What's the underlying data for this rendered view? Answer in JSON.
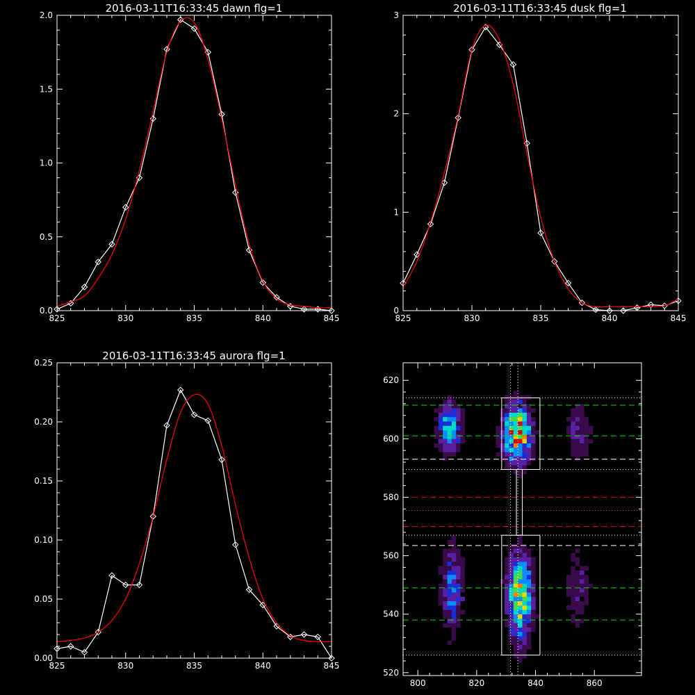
{
  "chart_data": [
    {
      "type": "line",
      "title": "2016-03-11T16:33:45 dawn flg=1",
      "xlim": [
        825,
        845
      ],
      "ylim": [
        0.0,
        2.0
      ],
      "xticks": [
        "825",
        "830",
        "835",
        "840",
        "845"
      ],
      "yticks": [
        "0.0",
        "0.5",
        "1.0",
        "1.5",
        "2.0"
      ],
      "series": [
        {
          "color": "#ffffff",
          "markers": "diamond",
          "x": [
            825,
            826,
            827,
            828,
            829,
            830,
            831,
            832,
            833,
            834,
            835,
            836,
            837,
            838,
            839,
            840,
            841,
            842,
            843,
            844,
            845
          ],
          "y": [
            0.01,
            0.05,
            0.16,
            0.33,
            0.45,
            0.7,
            0.9,
            1.3,
            1.77,
            1.97,
            1.91,
            1.75,
            1.33,
            0.8,
            0.41,
            0.19,
            0.09,
            0.03,
            0.01,
            0.01,
            0.0
          ]
        },
        {
          "color": "#ff0000",
          "x": [
            825,
            826,
            827,
            828,
            829,
            830,
            831,
            832,
            833,
            834,
            835,
            836,
            837,
            838,
            839,
            840,
            841,
            842,
            843,
            844,
            845
          ],
          "y": [
            0.03,
            0.06,
            0.1,
            0.22,
            0.38,
            0.62,
            0.95,
            1.35,
            1.75,
            1.96,
            1.95,
            1.7,
            1.3,
            0.85,
            0.45,
            0.2,
            0.08,
            0.04,
            0.03,
            0.02,
            0.02
          ]
        }
      ]
    },
    {
      "type": "line",
      "title": "2016-03-11T16:33:45 dusk flg=1",
      "xlim": [
        825,
        845
      ],
      "ylim": [
        0,
        3
      ],
      "xticks": [
        "825",
        "830",
        "835",
        "840",
        "845"
      ],
      "yticks": [
        "0",
        "1",
        "2",
        "3"
      ],
      "series": [
        {
          "color": "#ffffff",
          "markers": "diamond",
          "x": [
            825,
            826,
            827,
            828,
            829,
            830,
            831,
            832,
            833,
            834,
            835,
            836,
            837,
            838,
            839,
            840,
            841,
            842,
            843,
            844,
            845
          ],
          "y": [
            0.28,
            0.57,
            0.88,
            1.3,
            1.96,
            2.65,
            2.88,
            2.7,
            2.5,
            1.7,
            0.79,
            0.5,
            0.28,
            0.08,
            0.01,
            0.0,
            0.0,
            0.03,
            0.06,
            0.05,
            0.1
          ]
        },
        {
          "color": "#ff0000",
          "x": [
            825,
            826,
            827,
            828,
            829,
            830,
            831,
            832,
            833,
            834,
            835,
            836,
            837,
            838,
            839,
            840,
            841,
            842,
            843,
            844,
            845
          ],
          "y": [
            0.24,
            0.5,
            0.9,
            1.4,
            1.98,
            2.65,
            2.9,
            2.75,
            2.3,
            1.6,
            0.95,
            0.5,
            0.22,
            0.08,
            0.04,
            0.04,
            0.04,
            0.04,
            0.04,
            0.05,
            0.12
          ]
        }
      ]
    },
    {
      "type": "line",
      "title": "2016-03-11T16:33:45 aurora flg=1",
      "xlim": [
        825,
        845
      ],
      "ylim": [
        0.0,
        0.25
      ],
      "xticks": [
        "825",
        "830",
        "835",
        "840",
        "845"
      ],
      "yticks": [
        "0.00",
        "0.05",
        "0.10",
        "0.15",
        "0.20",
        "0.25"
      ],
      "series": [
        {
          "color": "#ffffff",
          "markers": "diamond",
          "x": [
            825,
            826,
            827,
            828,
            829,
            830,
            831,
            832,
            833,
            834,
            835,
            836,
            837,
            838,
            839,
            840,
            841,
            842,
            843,
            844,
            845
          ],
          "y": [
            0.008,
            0.01,
            0.005,
            0.022,
            0.07,
            0.062,
            0.062,
            0.12,
            0.197,
            0.227,
            0.206,
            0.201,
            0.168,
            0.096,
            0.058,
            0.045,
            0.027,
            0.018,
            0.02,
            0.018,
            0.0
          ]
        },
        {
          "color": "#ff0000",
          "x": [
            825,
            826,
            827,
            828,
            829,
            830,
            831,
            832,
            833,
            834,
            835,
            836,
            837,
            838,
            839,
            840,
            841,
            842,
            843,
            844,
            845
          ],
          "y": [
            0.014,
            0.015,
            0.017,
            0.022,
            0.032,
            0.05,
            0.08,
            0.12,
            0.168,
            0.208,
            0.223,
            0.215,
            0.18,
            0.13,
            0.085,
            0.05,
            0.03,
            0.019,
            0.015,
            0.014,
            0.014
          ]
        }
      ]
    },
    {
      "type": "heatmap",
      "xlim": [
        795,
        876
      ],
      "ylim": [
        519,
        626
      ],
      "xticks": [
        "800",
        "820",
        "840",
        "860"
      ],
      "yticks": [
        "520",
        "540",
        "560",
        "580",
        "600",
        "620"
      ],
      "colormap": [
        "#000000",
        "#3a0a4a",
        "#5a1fa0",
        "#1a2dd6",
        "#0a8cff",
        "#00d8c8",
        "#4cd84c",
        "#e8d800",
        "#ff8000",
        "#e00000"
      ],
      "blobs": [
        {
          "x": 810,
          "y": 603,
          "sx": 2.8,
          "sy": 6,
          "amp": 0.55
        },
        {
          "x": 811,
          "y": 548,
          "sx": 2.5,
          "sy": 10,
          "amp": 0.42
        },
        {
          "x": 833,
          "y": 601,
          "sx": 3.2,
          "sy": 6.5,
          "amp": 1.0
        },
        {
          "x": 834,
          "y": 545,
          "sx": 2.8,
          "sy": 10,
          "amp": 0.82
        },
        {
          "x": 854,
          "y": 601,
          "sx": 3,
          "sy": 7,
          "amp": 0.22
        },
        {
          "x": 854,
          "y": 548,
          "sx": 3,
          "sy": 10,
          "amp": 0.2
        }
      ],
      "hlines": [
        {
          "y": 611.5,
          "color": "#00dd00",
          "style": "dashed"
        },
        {
          "y": 601,
          "color": "#00dd00",
          "style": "dashed"
        },
        {
          "y": 593,
          "color": "#ffffff",
          "style": "dashed"
        },
        {
          "y": 580,
          "color": "#dd0000",
          "style": "dashed"
        },
        {
          "y": 570,
          "color": "#dd0000",
          "style": "dashed"
        },
        {
          "y": 563.5,
          "color": "#ffffff",
          "style": "dashed"
        },
        {
          "y": 549,
          "color": "#00dd00",
          "style": "dashed"
        },
        {
          "y": 538,
          "color": "#00dd00",
          "style": "dashed"
        },
        {
          "y": 614,
          "color": "#ffffff",
          "style": "dotted"
        },
        {
          "y": 589.5,
          "color": "#ffffff",
          "style": "dotted"
        },
        {
          "y": 575.5,
          "color": "#ff4040",
          "style": "dotted"
        },
        {
          "y": 567,
          "color": "#ffffff",
          "style": "dotted"
        },
        {
          "y": 526,
          "color": "#ffffff",
          "style": "dotted"
        }
      ],
      "vlines": [
        {
          "x": 831.5,
          "color": "#ffffff",
          "style": "dotted"
        },
        {
          "x": 834,
          "color": "#ffffff",
          "style": "dotted"
        }
      ],
      "boxes": [
        {
          "x0": 828.5,
          "x1": 841.5,
          "y0": 589.5,
          "y1": 614
        },
        {
          "x0": 828.5,
          "x1": 841.5,
          "y0": 526,
          "y1": 567
        },
        {
          "x0": 833.5,
          "x1": 835.5,
          "y0": 567,
          "y1": 589.5
        }
      ]
    }
  ]
}
